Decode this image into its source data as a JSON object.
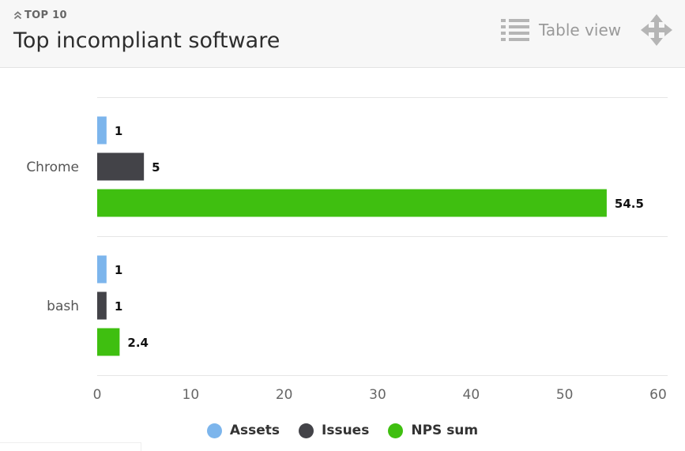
{
  "header": {
    "eyebrow": "TOP 10",
    "title": "Top incompliant software",
    "table_view_label": "Table view",
    "icons": [
      "chevron-up-double-icon",
      "list-icon",
      "move-arrows-icon"
    ]
  },
  "chart_data": {
    "type": "bar",
    "orientation": "horizontal",
    "categories": [
      "Chrome",
      "bash"
    ],
    "series": [
      {
        "name": "Assets",
        "color": "#7cb5ec",
        "values": [
          1,
          1
        ],
        "labels": [
          "1",
          "1"
        ]
      },
      {
        "name": "Issues",
        "color": "#434348",
        "values": [
          5,
          1
        ],
        "labels": [
          "5",
          "1"
        ]
      },
      {
        "name": "NPS sum",
        "color": "#3fbf10",
        "values": [
          54.5,
          2.4
        ],
        "labels": [
          "54.5",
          "2.4"
        ]
      }
    ],
    "xlim": [
      0,
      60
    ],
    "x_ticks": [
      "0",
      "10",
      "20",
      "30",
      "40",
      "50",
      "60"
    ],
    "legend_position": "bottom"
  }
}
